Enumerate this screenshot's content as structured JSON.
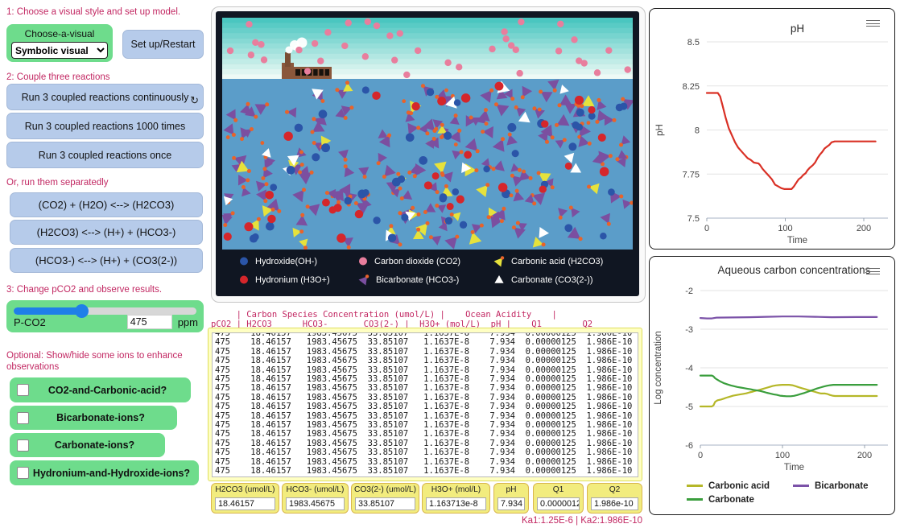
{
  "left_panel": {
    "section1_label": "1: Choose a visual style and set up model.",
    "chooser": {
      "label": "Choose-a-visual",
      "selected": "Symbolic visual"
    },
    "setup_button": "Set up/Restart",
    "section2_label": "2: Couple three reactions",
    "run_buttons": [
      "Run 3 coupled reactions continuously",
      "Run 3 coupled reactions 1000 times",
      "Run 3 coupled reactions once"
    ],
    "separate_label": "Or, run them separatedly",
    "reaction_buttons": [
      "(CO2) + (H2O) <--> (H2CO3)",
      "(H2CO3) <--> (H+) + (HCO3-)",
      "(HCO3-) <--> (H+) + (CO3(2-))"
    ],
    "section3_label": "3: Change pCO2 and observe results.",
    "slider": {
      "label": "P-CO2",
      "value": "475",
      "unit": "ppm"
    },
    "optional_label": "Optional:  Show/hide some ions to enhance observations",
    "toggles": [
      {
        "label": "CO2-and-Carbonic-acid?",
        "checked": false
      },
      {
        "label": "Bicarbonate-ions?",
        "checked": false
      },
      {
        "label": "Carbonate-ions?",
        "checked": false
      },
      {
        "label": "Hydronium-and-Hydroxide-ions?",
        "checked": false
      }
    ]
  },
  "sim": {
    "colors": {
      "sky_top": "#4ac6c0",
      "sky_bottom": "#eefaf6",
      "water": "#5b9dc9",
      "frame": "#101622",
      "factory": "#8a573b",
      "chimney": "#7a4e34",
      "pink": "#e87e9d",
      "purple": "#7b4fa0",
      "yellow": "#e6e23c",
      "white": "#ffffff",
      "navy": "#2b55a8",
      "red": "#d5262b",
      "orange": "#e8632a"
    },
    "particles": {
      "purple": 140,
      "yellow": 26,
      "white": 15,
      "navy": 44,
      "red": 28,
      "orange": 10,
      "sky_pink": 38
    },
    "legend": [
      {
        "label": "Hydroxide(OH-)",
        "marker": "circle",
        "color": "#2b55a8"
      },
      {
        "label": "Carbon dioxide (CO2)",
        "marker": "circle",
        "color": "#e87e9d"
      },
      {
        "label": "Carbonic acid (H2CO3)",
        "marker": "tri-dot",
        "color": "#e6e23c",
        "dot": "#e8632a"
      },
      {
        "label": "Hydronium (H3O+)",
        "marker": "circle",
        "color": "#d5262b"
      },
      {
        "label": "Bicarbonate (HCO3-)",
        "marker": "tri-dot",
        "color": "#7b4fa0",
        "dot": "#e8632a"
      },
      {
        "label": "Carbonate (CO3(2-))",
        "marker": "tri",
        "color": "#ffffff"
      }
    ]
  },
  "output_table": {
    "header_line1": "     | Carbon Species Concentration (umol/L) |    Ocean Acidity    |",
    "header_line2": "pCO2 | H2CO3      HCO3-       CO3(2-) |  H3O+ (mol/L)  pH |    Q1        Q2",
    "rows": [
      "475    18.46157   1983.45675  33.85107   1.1637E-8    7.934  0.00000125  1.986E-10",
      "475    18.46157   1983.45675  33.85107   1.1637E-8    7.934  0.00000125  1.986E-10",
      "475    18.46157   1983.45675  33.85107   1.1637E-8    7.934  0.00000125  1.986E-10",
      "475    18.46157   1983.45675  33.85107   1.1637E-8    7.934  0.00000125  1.986E-10",
      "475    18.46157   1983.45675  33.85107   1.1637E-8    7.934  0.00000125  1.986E-10",
      "475    18.46157   1983.45675  33.85107   1.1637E-8    7.934  0.00000125  1.986E-10",
      "475    18.46157   1983.45675  33.85107   1.1637E-8    7.934  0.00000125  1.986E-10",
      "475    18.46157   1983.45675  33.85107   1.1637E-8    7.934  0.00000125  1.986E-10",
      "475    18.46157   1983.45675  33.85107   1.1637E-8    7.934  0.00000125  1.986E-10",
      "475    18.46157   1983.45675  33.85107   1.1637E-8    7.934  0.00000125  1.986E-10",
      "475    18.46157   1983.45675  33.85107   1.1637E-8    7.934  0.00000125  1.986E-10",
      "475    18.46157   1983.45675  33.85107   1.1637E-8    7.934  0.00000125  1.986E-10",
      "475    18.46157   1983.45675  33.85107   1.1637E-8    7.934  0.00000125  1.986E-10",
      "475    18.46157   1983.45675  33.85107   1.1637E-8    7.934  0.00000125  1.986E-10",
      "475    18.46157   1983.45675  33.85107   1.1637E-8    7.934  0.00000125  1.986E-10",
      "475    18.46157   1983.45675  33.85107   1.1637E-8    7.934  0.00000125  1.986E-10",
      "475    18.46157   1983.45675  33.85107   1.1637E-8    7.934  0.00000125  1.986E-10"
    ]
  },
  "monitors": [
    {
      "label": "H2CO3 (umol/L)",
      "value": "18.46157"
    },
    {
      "label": "HCO3- (umol/L)",
      "value": "1983.45675"
    },
    {
      "label": "CO3(2-) (umol/L)",
      "value": "33.85107"
    },
    {
      "label": "H3O+ (mol/L)",
      "value": "1.163713e-8"
    },
    {
      "label": "pH",
      "value": "7.934"
    },
    {
      "label": "Q1",
      "value": "0.00000125"
    },
    {
      "label": "Q2",
      "value": "1.986e-10"
    }
  ],
  "ka_note": "Ka1:1.25E-6 | Ka2:1.986E-10",
  "chart_data": [
    {
      "type": "line",
      "title": "pH",
      "xlabel": "Time",
      "ylabel": "pH",
      "xlim": [
        0,
        215
      ],
      "ylim": [
        7.5,
        8.5
      ],
      "grid": true,
      "xticks": [
        0,
        100,
        200
      ],
      "yticks": [
        {
          "v": 8.5,
          "label": "8.5"
        },
        {
          "v": 8.25,
          "label": "8.25"
        },
        {
          "v": 8,
          "label": "8"
        },
        {
          "v": 7.75,
          "label": "7.75"
        },
        {
          "v": 7.5,
          "label": "7.5"
        }
      ],
      "series": [
        {
          "name": "pH",
          "color": "#d93025",
          "points": [
            [
              0,
              8.21
            ],
            [
              14,
              8.21
            ],
            [
              17,
              8.19
            ],
            [
              20,
              8.14
            ],
            [
              24,
              8.07
            ],
            [
              28,
              8.01
            ],
            [
              32,
              7.97
            ],
            [
              36,
              7.93
            ],
            [
              40,
              7.9
            ],
            [
              44,
              7.88
            ],
            [
              48,
              7.86
            ],
            [
              52,
              7.84
            ],
            [
              56,
              7.83
            ],
            [
              60,
              7.815
            ],
            [
              66,
              7.81
            ],
            [
              68,
              7.8
            ],
            [
              71,
              7.78
            ],
            [
              75,
              7.76
            ],
            [
              79,
              7.74
            ],
            [
              83,
              7.72
            ],
            [
              87,
              7.69
            ],
            [
              91,
              7.68
            ],
            [
              95,
              7.67
            ],
            [
              99,
              7.665
            ],
            [
              108,
              7.665
            ],
            [
              111,
              7.68
            ],
            [
              114,
              7.7
            ],
            [
              117,
              7.72
            ],
            [
              120,
              7.73
            ],
            [
              123,
              7.745
            ],
            [
              126,
              7.755
            ],
            [
              128,
              7.77
            ],
            [
              131,
              7.785
            ],
            [
              135,
              7.8
            ],
            [
              138,
              7.815
            ],
            [
              141,
              7.84
            ],
            [
              144,
              7.86
            ],
            [
              147,
              7.875
            ],
            [
              150,
              7.895
            ],
            [
              153,
              7.905
            ],
            [
              156,
              7.915
            ],
            [
              159,
              7.93
            ],
            [
              163,
              7.935
            ],
            [
              215,
              7.935
            ]
          ]
        }
      ]
    },
    {
      "type": "line",
      "title": "Aqueous carbon concentrations",
      "xlabel": "Time",
      "ylabel": "Log concentration",
      "xlim": [
        0,
        215
      ],
      "ylim": [
        -6,
        -2
      ],
      "grid": true,
      "legend_position": "bottom",
      "xticks": [
        0,
        100,
        200
      ],
      "yticks": [
        {
          "v": -2,
          "label": "-2"
        },
        {
          "v": -3,
          "label": "-3"
        },
        {
          "v": -4,
          "label": "-4"
        },
        {
          "v": -5,
          "label": "-5"
        },
        {
          "v": -6,
          "label": "-6"
        }
      ],
      "series": [
        {
          "name": "Carbonic acid",
          "color": "#b5b728",
          "points": [
            [
              0,
              -5
            ],
            [
              14,
              -5
            ],
            [
              16,
              -4.97
            ],
            [
              18,
              -4.88
            ],
            [
              21,
              -4.84
            ],
            [
              25,
              -4.82
            ],
            [
              28,
              -4.8
            ],
            [
              32,
              -4.77
            ],
            [
              36,
              -4.745
            ],
            [
              40,
              -4.72
            ],
            [
              44,
              -4.705
            ],
            [
              48,
              -4.69
            ],
            [
              52,
              -4.675
            ],
            [
              56,
              -4.66
            ],
            [
              60,
              -4.635
            ],
            [
              64,
              -4.615
            ],
            [
              68,
              -4.59
            ],
            [
              72,
              -4.57
            ],
            [
              76,
              -4.545
            ],
            [
              80,
              -4.52
            ],
            [
              84,
              -4.495
            ],
            [
              88,
              -4.47
            ],
            [
              92,
              -4.455
            ],
            [
              96,
              -4.445
            ],
            [
              100,
              -4.44
            ],
            [
              108,
              -4.44
            ],
            [
              112,
              -4.45
            ],
            [
              116,
              -4.475
            ],
            [
              120,
              -4.505
            ],
            [
              124,
              -4.53
            ],
            [
              128,
              -4.555
            ],
            [
              132,
              -4.58
            ],
            [
              136,
              -4.6
            ],
            [
              140,
              -4.625
            ],
            [
              144,
              -4.65
            ],
            [
              147,
              -4.665
            ],
            [
              152,
              -4.665
            ],
            [
              155,
              -4.68
            ],
            [
              158,
              -4.705
            ],
            [
              161,
              -4.72
            ],
            [
              164,
              -4.73
            ],
            [
              215,
              -4.73
            ]
          ]
        },
        {
          "name": "Carbonate",
          "color": "#3a9e3d",
          "points": [
            [
              0,
              -4.2
            ],
            [
              14,
              -4.2
            ],
            [
              16,
              -4.22
            ],
            [
              18,
              -4.27
            ],
            [
              21,
              -4.31
            ],
            [
              25,
              -4.36
            ],
            [
              29,
              -4.4
            ],
            [
              33,
              -4.43
            ],
            [
              37,
              -4.455
            ],
            [
              41,
              -4.475
            ],
            [
              45,
              -4.495
            ],
            [
              49,
              -4.51
            ],
            [
              53,
              -4.525
            ],
            [
              57,
              -4.54
            ],
            [
              61,
              -4.555
            ],
            [
              65,
              -4.57
            ],
            [
              69,
              -4.585
            ],
            [
              73,
              -4.6
            ],
            [
              77,
              -4.62
            ],
            [
              81,
              -4.645
            ],
            [
              85,
              -4.665
            ],
            [
              89,
              -4.685
            ],
            [
              93,
              -4.7
            ],
            [
              97,
              -4.72
            ],
            [
              101,
              -4.73
            ],
            [
              105,
              -4.735
            ],
            [
              110,
              -4.735
            ],
            [
              114,
              -4.725
            ],
            [
              118,
              -4.705
            ],
            [
              122,
              -4.68
            ],
            [
              126,
              -4.655
            ],
            [
              130,
              -4.625
            ],
            [
              134,
              -4.595
            ],
            [
              138,
              -4.565
            ],
            [
              142,
              -4.535
            ],
            [
              146,
              -4.51
            ],
            [
              150,
              -4.485
            ],
            [
              154,
              -4.465
            ],
            [
              158,
              -4.45
            ],
            [
              162,
              -4.44
            ],
            [
              215,
              -4.44
            ]
          ]
        },
        {
          "name": "Bicarbonate",
          "color": "#7b52a8",
          "points": [
            [
              0,
              -2.71
            ],
            [
              8,
              -2.72
            ],
            [
              14,
              -2.72
            ],
            [
              20,
              -2.7
            ],
            [
              40,
              -2.695
            ],
            [
              60,
              -2.69
            ],
            [
              80,
              -2.68
            ],
            [
              100,
              -2.67
            ],
            [
              120,
              -2.67
            ],
            [
              140,
              -2.68
            ],
            [
              160,
              -2.69
            ],
            [
              190,
              -2.685
            ],
            [
              215,
              -2.685
            ]
          ]
        }
      ]
    }
  ]
}
